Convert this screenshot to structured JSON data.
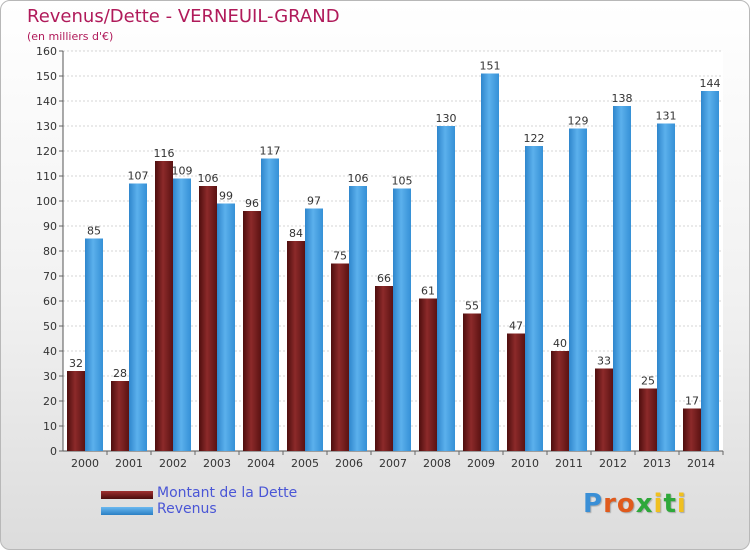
{
  "header": {
    "title": "Revenus/Dette - VERNEUIL-GRAND",
    "subtitle": "(en milliers d'€)"
  },
  "colors": {
    "title": "#b01a5a",
    "dette": "#7a1e1e",
    "revenus": "#3c9be0",
    "legend_text": "#4a56d6"
  },
  "chart_data": {
    "type": "bar",
    "title": "Revenus/Dette - VERNEUIL-GRAND",
    "ylabel": "(en milliers d'€)",
    "xlabel": "",
    "categories": [
      "2000",
      "2001",
      "2002",
      "2003",
      "2004",
      "2005",
      "2006",
      "2007",
      "2008",
      "2009",
      "2010",
      "2011",
      "2012",
      "2013",
      "2014"
    ],
    "series": [
      {
        "name": "Montant de la Dette",
        "color": "#7a1e1e",
        "values": [
          32,
          28,
          116,
          106,
          96,
          84,
          75,
          66,
          61,
          55,
          47,
          40,
          33,
          25,
          17
        ]
      },
      {
        "name": "Revenus",
        "color": "#3c9be0",
        "values": [
          85,
          107,
          109,
          99,
          117,
          97,
          106,
          105,
          130,
          151,
          122,
          129,
          138,
          131,
          144
        ]
      }
    ],
    "ylim": [
      0,
      160
    ],
    "yticks": [
      0,
      10,
      20,
      30,
      40,
      50,
      60,
      70,
      80,
      90,
      100,
      110,
      120,
      130,
      140,
      150,
      160
    ],
    "grid": true,
    "legend_position": "bottom-left"
  },
  "legend": [
    {
      "label": "Montant de la Dette"
    },
    {
      "label": "Revenus"
    }
  ],
  "logo": {
    "letters": [
      "P",
      "r",
      "o",
      "x",
      "i",
      "t",
      "i"
    ],
    "colors": [
      "#3a8fd6",
      "#e05a1c",
      "#e05a1c",
      "#2ea83a",
      "#f0c020",
      "#2ea83a",
      "#f0c020"
    ]
  }
}
